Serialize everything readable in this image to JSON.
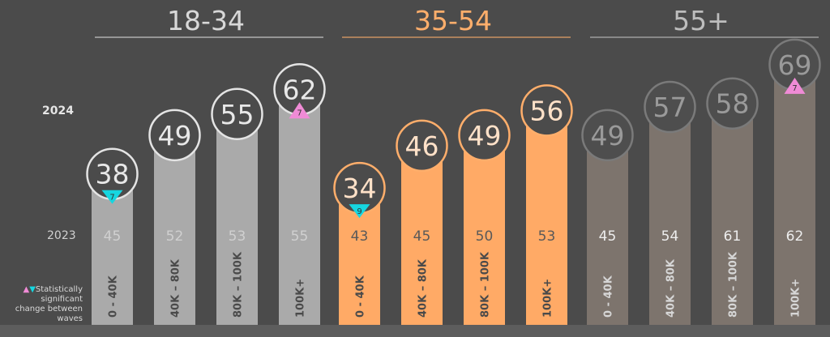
{
  "row_labels": {
    "year_2024": "2024",
    "year_2023": "2023"
  },
  "legend": {
    "text": "Statistically significant change between waves",
    "up_symbol": "▲",
    "down_symbol": "▼"
  },
  "colors": {
    "background": "#4b4b4b",
    "group_18_34_bar": "#aaaaaa",
    "group_18_34_title": "#d8d8d8",
    "group_35_54_bar": "#ffaa66",
    "group_35_54_title": "#ffae6b",
    "group_55_bar": "#7d746d",
    "group_55_title": "#bdbdbd",
    "increase_marker": "#f08bd6",
    "decrease_marker": "#16d6e0"
  },
  "chart_data": {
    "type": "bar",
    "series": [
      {
        "name": "2024",
        "values": [
          38,
          49,
          55,
          62,
          34,
          46,
          49,
          56,
          49,
          57,
          58,
          69
        ]
      },
      {
        "name": "2023",
        "values": [
          45,
          52,
          53,
          55,
          43,
          45,
          50,
          53,
          45,
          54,
          61,
          62
        ]
      }
    ],
    "groups": [
      {
        "title": "18-34",
        "categories": [
          "0 - 40K",
          "40K – 80K",
          "80K – 100K",
          "100K+"
        ]
      },
      {
        "title": "35-54",
        "categories": [
          "0 - 40K",
          "40K – 80K",
          "80K – 100K",
          "100K+"
        ]
      },
      {
        "title": "55+",
        "categories": [
          "0 - 40K",
          "40K – 80K",
          "80K – 100K",
          "100K+"
        ]
      }
    ],
    "significance": [
      {
        "index": 0,
        "direction": "down",
        "value": 7
      },
      {
        "index": 3,
        "direction": "up",
        "value": 7
      },
      {
        "index": 4,
        "direction": "down",
        "value": 9
      },
      {
        "index": 11,
        "direction": "up",
        "value": 7
      }
    ],
    "ylim": [
      0,
      100
    ]
  }
}
